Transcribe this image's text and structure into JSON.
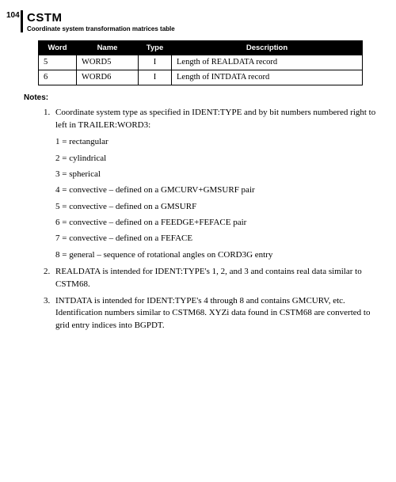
{
  "page_number": "104",
  "header": {
    "title": "CSTM",
    "subtitle": "Coordinate system transformation matrices table"
  },
  "table": {
    "columns": [
      "Word",
      "Name",
      "Type",
      "Description"
    ],
    "rows": [
      [
        "5",
        "WORD5",
        "I",
        "Length of REALDATA record"
      ],
      [
        "6",
        "WORD6",
        "I",
        "Length of INTDATA record"
      ]
    ]
  },
  "notes_label": "Notes:",
  "notes": [
    {
      "text": "Coordinate system type as specified in IDENT:TYPE and by bit numbers numbered right to left in TRAILER:WORD3:",
      "sub": [
        "1 = rectangular",
        "2 = cylindrical",
        "3 = spherical",
        "4 = convective – defined on a GMCURV+GMSURF pair",
        "5 = convective – defined on a GMSURF",
        "6 = convective – defined on a FEEDGE+FEFACE pair",
        "7 = convective – defined on a FEFACE",
        "8 = general – sequence of rotational angles on CORD3G entry"
      ]
    },
    {
      "text": "REALDATA is intended for IDENT:TYPE's 1, 2, and 3 and contains real data similar to CSTM68."
    },
    {
      "text": "INTDATA is intended for IDENT:TYPE's 4 through 8 and contains GMCURV, etc. Identification numbers similar to CSTM68. XYZi data found in CSTM68 are converted to grid entry indices into BGPDT."
    }
  ]
}
